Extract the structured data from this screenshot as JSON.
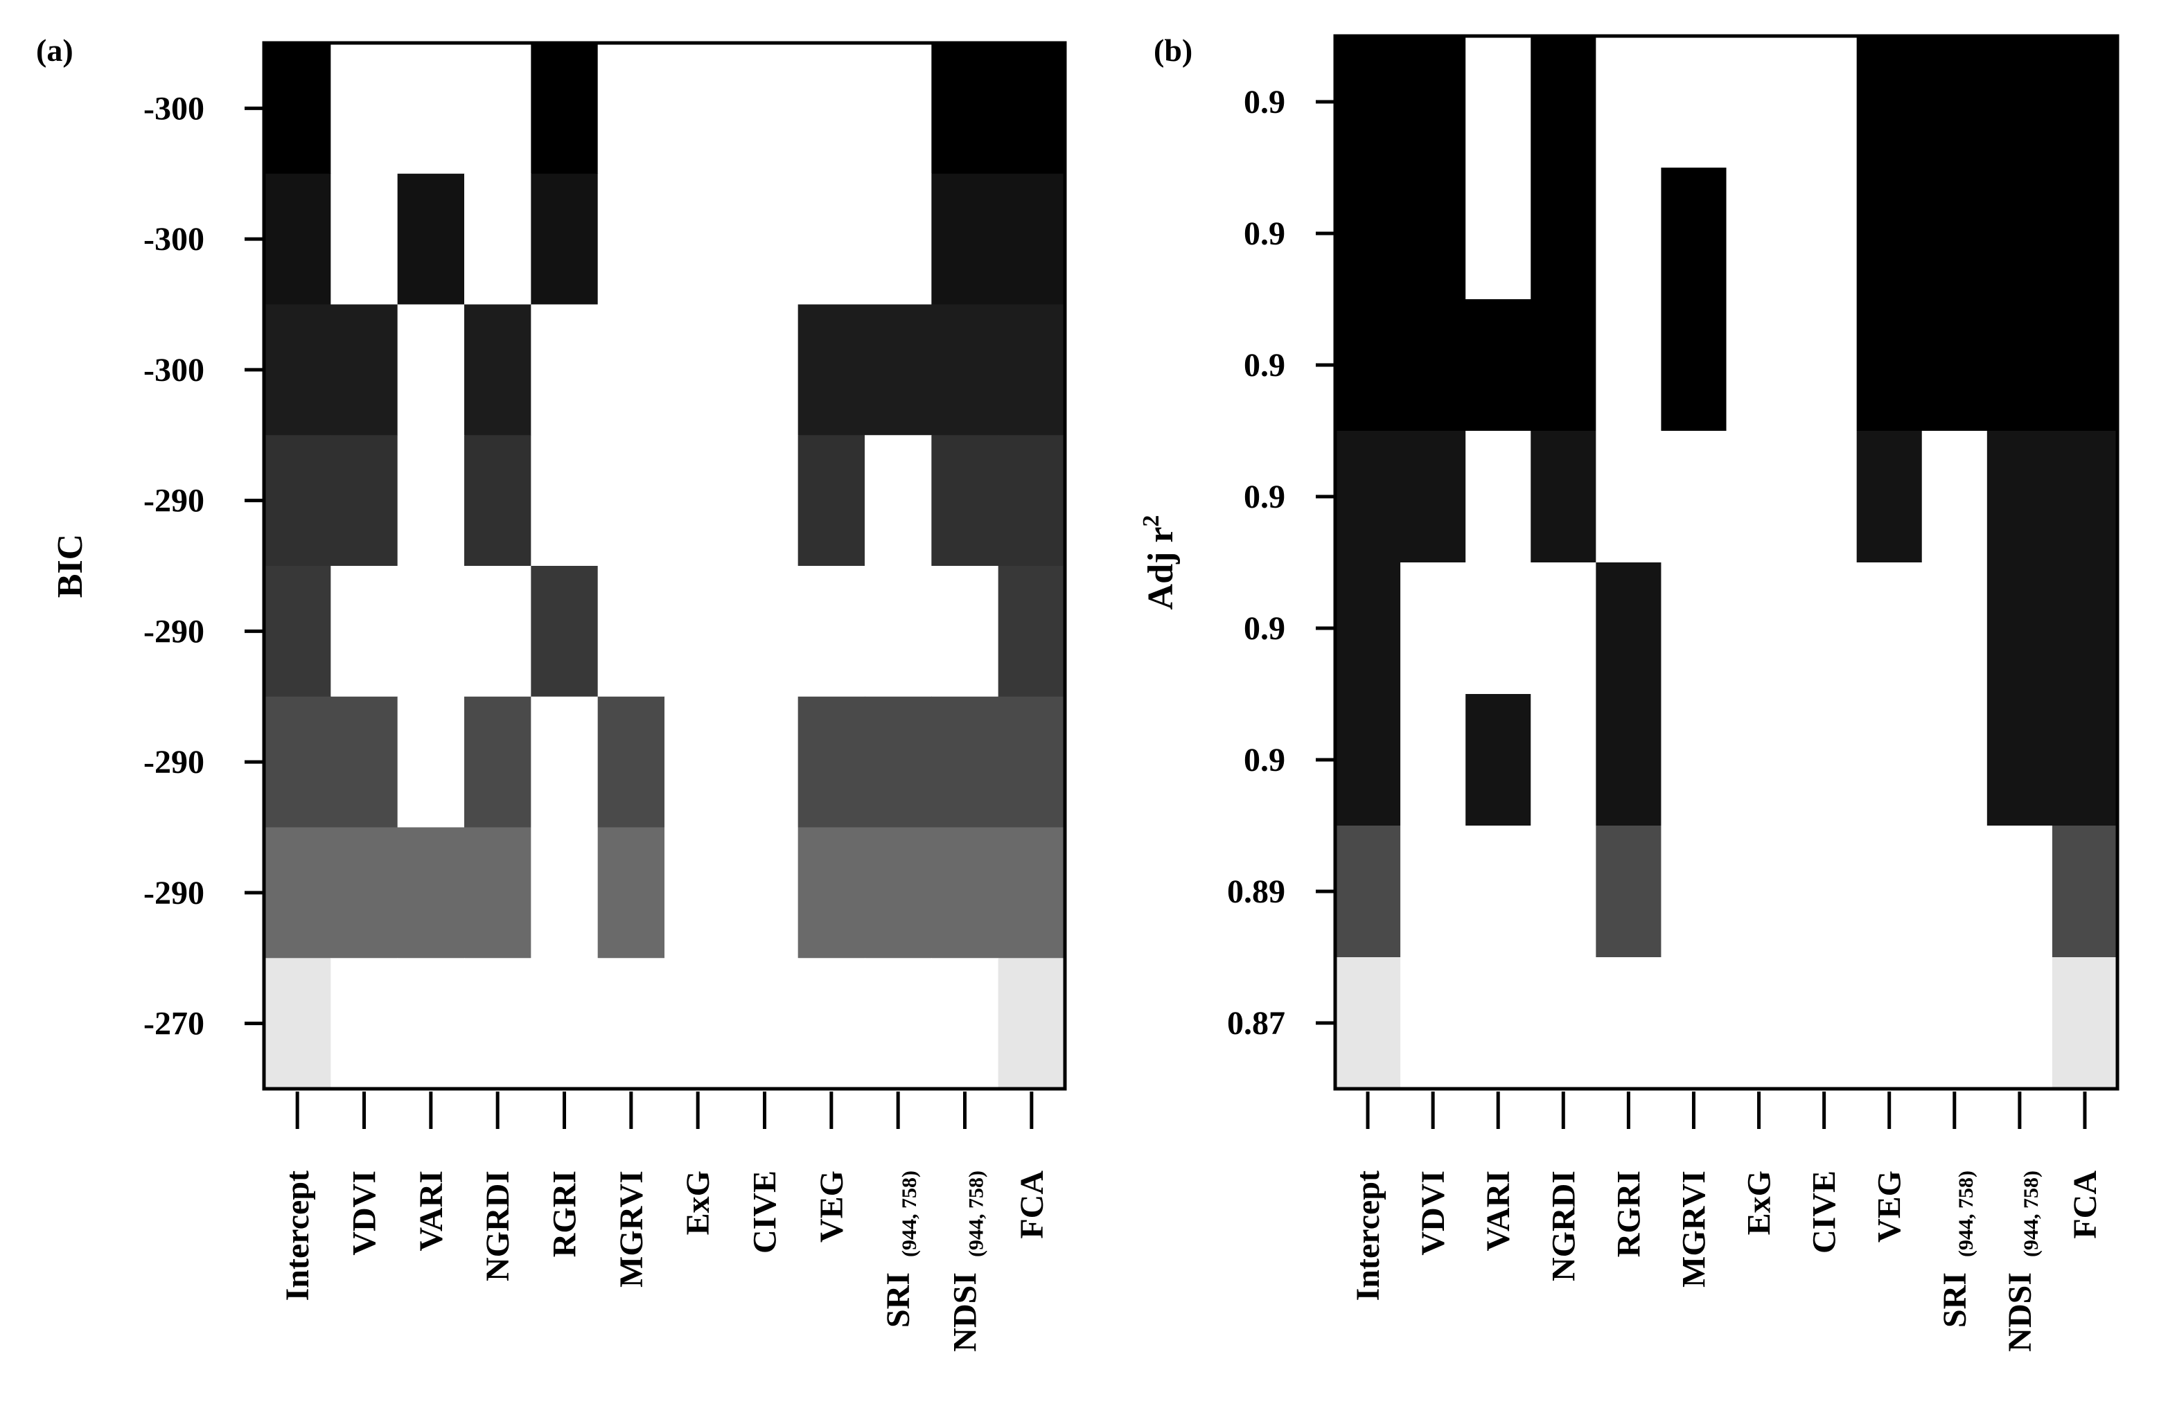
{
  "chart_data": [
    {
      "type": "heatmap",
      "panel_label": "(a)",
      "ylabel": "BIC",
      "categories": [
        {
          "name": "Intercept",
          "sub": ""
        },
        {
          "name": "VDVI",
          "sub": ""
        },
        {
          "name": "VARI",
          "sub": ""
        },
        {
          "name": "NGRDI",
          "sub": ""
        },
        {
          "name": "RGRI",
          "sub": ""
        },
        {
          "name": "MGRVI",
          "sub": ""
        },
        {
          "name": "ExG",
          "sub": ""
        },
        {
          "name": "CIVE",
          "sub": ""
        },
        {
          "name": "VEG",
          "sub": ""
        },
        {
          "name": "SRI",
          "sub": "(944, 758)"
        },
        {
          "name": "NDSI",
          "sub": "(944, 758)"
        },
        {
          "name": "FCA",
          "sub": ""
        }
      ],
      "row_labels": [
        "-300",
        "-300",
        "-300",
        "-290",
        "-290",
        "-290",
        "-290",
        "-270"
      ],
      "row_shades": [
        "#000000",
        "#121212",
        "#1c1c1c",
        "#303030",
        "#383838",
        "#4a4a4a",
        "#6a6a6a",
        "#e6e6e6"
      ],
      "matrix": [
        [
          1,
          0,
          0,
          0,
          1,
          0,
          0,
          0,
          0,
          0,
          1,
          1
        ],
        [
          1,
          0,
          1,
          0,
          1,
          0,
          0,
          0,
          0,
          0,
          1,
          1
        ],
        [
          1,
          1,
          0,
          1,
          0,
          0,
          0,
          0,
          1,
          1,
          1,
          1
        ],
        [
          1,
          1,
          0,
          1,
          0,
          0,
          0,
          0,
          1,
          0,
          1,
          1
        ],
        [
          1,
          0,
          0,
          0,
          1,
          0,
          0,
          0,
          0,
          0,
          0,
          1
        ],
        [
          1,
          1,
          0,
          1,
          0,
          1,
          0,
          0,
          1,
          1,
          1,
          1
        ],
        [
          1,
          1,
          1,
          1,
          0,
          1,
          0,
          0,
          1,
          1,
          1,
          1
        ],
        [
          1,
          0,
          0,
          0,
          0,
          0,
          0,
          0,
          0,
          0,
          0,
          1
        ]
      ]
    },
    {
      "type": "heatmap",
      "panel_label": "(b)",
      "ylabel": "Adj r",
      "ylabel_sup": "2",
      "categories": [
        {
          "name": "Intercept",
          "sub": ""
        },
        {
          "name": "VDVI",
          "sub": ""
        },
        {
          "name": "VARI",
          "sub": ""
        },
        {
          "name": "NGRDI",
          "sub": ""
        },
        {
          "name": "RGRI",
          "sub": ""
        },
        {
          "name": "MGRVI",
          "sub": ""
        },
        {
          "name": "ExG",
          "sub": ""
        },
        {
          "name": "CIVE",
          "sub": ""
        },
        {
          "name": "VEG",
          "sub": ""
        },
        {
          "name": "SRI",
          "sub": "(944, 758)"
        },
        {
          "name": "NDSI",
          "sub": "(944, 758)"
        },
        {
          "name": "FCA",
          "sub": ""
        }
      ],
      "row_labels": [
        "0.9",
        "0.9",
        "0.9",
        "0.9",
        "0.9",
        "0.9",
        "0.89",
        "0.87"
      ],
      "row_shades": [
        "#000000",
        "#000000",
        "#000000",
        "#141414",
        "#141414",
        "#141414",
        "#4a4a4a",
        "#e6e6e6"
      ],
      "matrix": [
        [
          1,
          1,
          0,
          1,
          0,
          0,
          0,
          0,
          1,
          1,
          1,
          1
        ],
        [
          1,
          1,
          0,
          1,
          0,
          1,
          0,
          0,
          1,
          1,
          1,
          1
        ],
        [
          1,
          1,
          1,
          1,
          0,
          1,
          0,
          0,
          1,
          1,
          1,
          1
        ],
        [
          1,
          1,
          0,
          1,
          0,
          0,
          0,
          0,
          1,
          0,
          1,
          1
        ],
        [
          1,
          0,
          0,
          0,
          1,
          0,
          0,
          0,
          0,
          0,
          1,
          1
        ],
        [
          1,
          0,
          1,
          0,
          1,
          0,
          0,
          0,
          0,
          0,
          1,
          1
        ],
        [
          1,
          0,
          0,
          0,
          1,
          0,
          0,
          0,
          0,
          0,
          0,
          1
        ],
        [
          1,
          0,
          0,
          0,
          0,
          0,
          0,
          0,
          0,
          0,
          0,
          1
        ]
      ]
    }
  ]
}
